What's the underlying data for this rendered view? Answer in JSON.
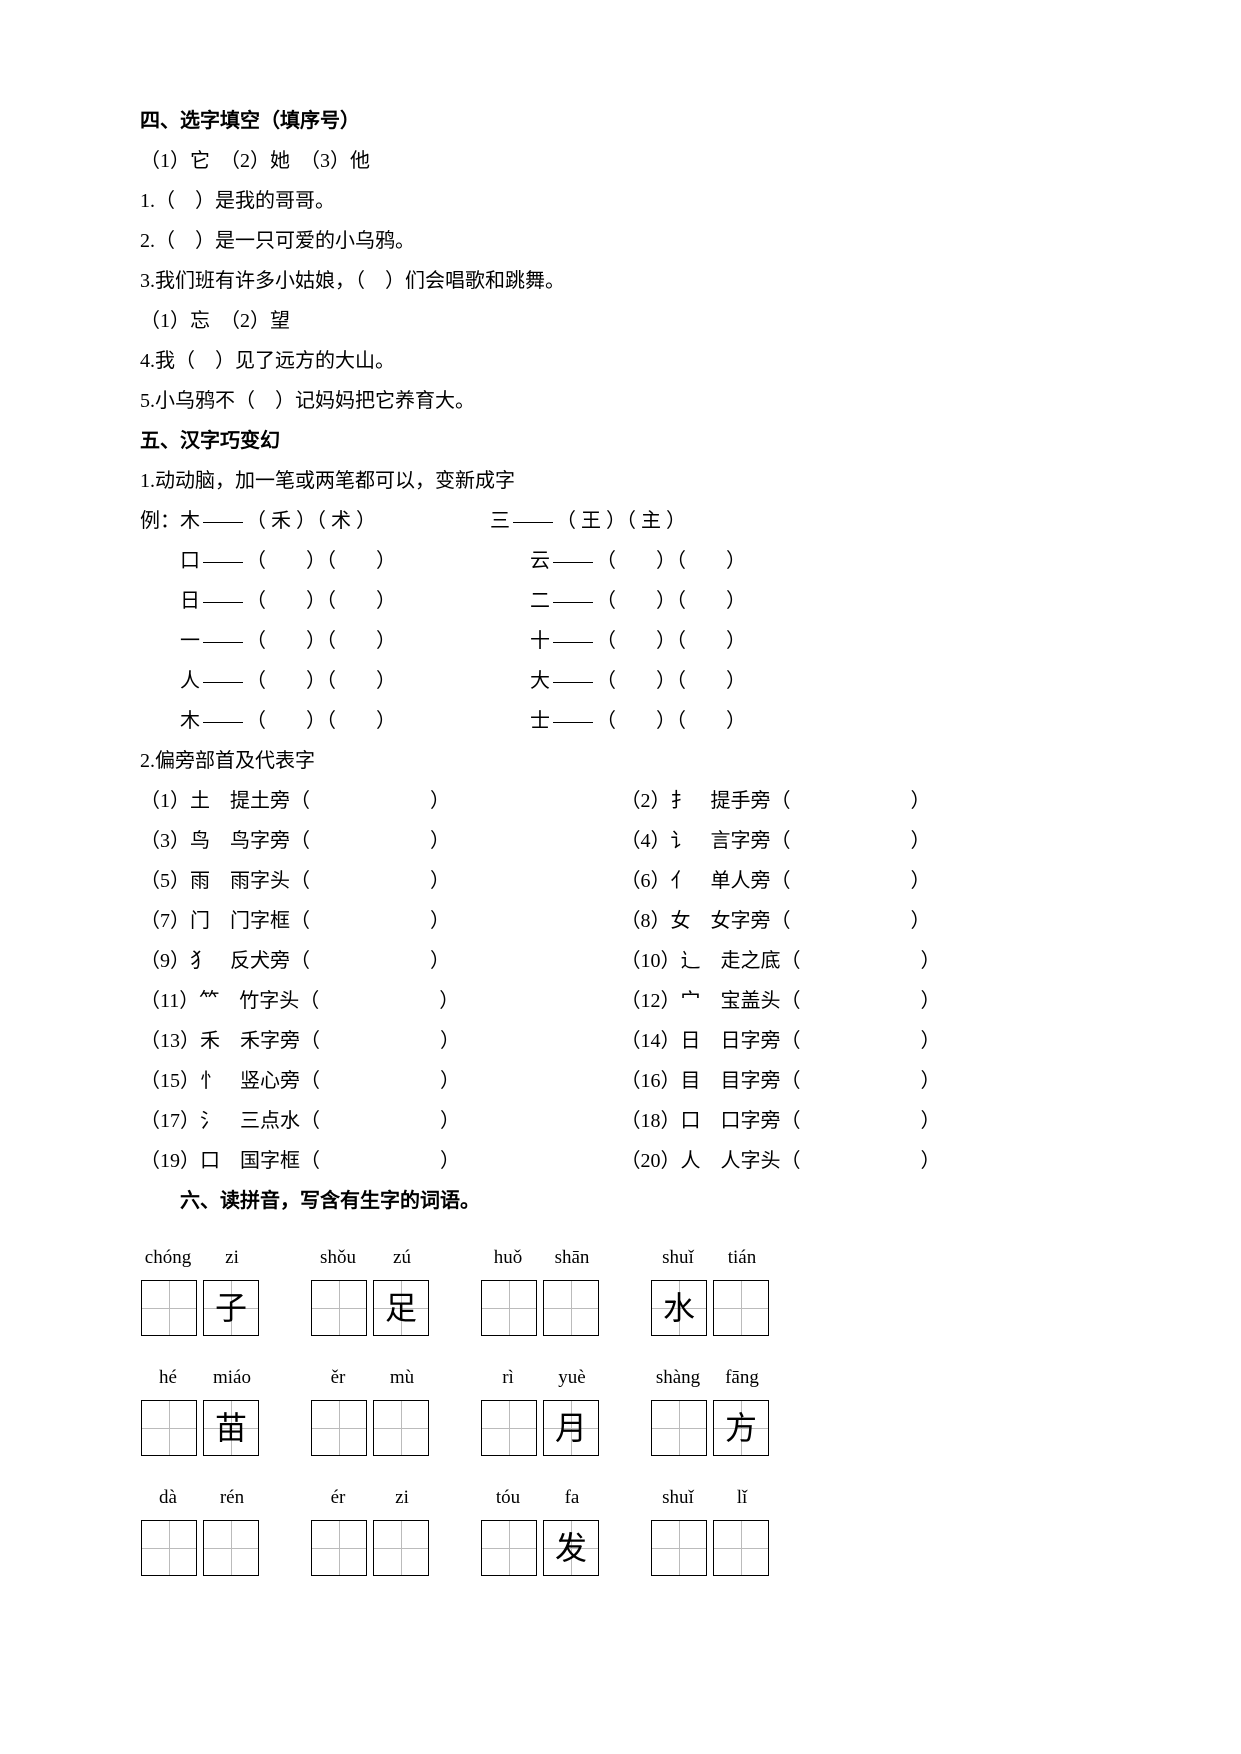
{
  "section4": {
    "title": "四、选字填空（填序号）",
    "choices1": "（1）它　（2）她　（3）他",
    "q1": "1.（　）是我的哥哥。",
    "q2": "2.（　）是一只可爱的小乌鸦。",
    "q3": "3.我们班有许多小姑娘，（　）们会唱歌和跳舞。",
    "choices2": "（1）忘　（2）望",
    "q4": "4.我（　）见了远方的大山。",
    "q5": "5.小乌鸦不（　）记妈妈把它养育大。"
  },
  "section5": {
    "title": "五、汉字巧变幻",
    "sub1": "1.动动脑，加一笔或两笔都可以，变新成字",
    "example_l": "例：木",
    "example_l_ans": "（ 禾 ）（ 术 ）",
    "example_r": "三",
    "example_r_ans": "（ 王 ）（ 主 ）",
    "rows": [
      {
        "l": "口",
        "r": "云"
      },
      {
        "l": "日",
        "r": "二"
      },
      {
        "l": "一",
        "r": "十"
      },
      {
        "l": "人",
        "r": "大"
      },
      {
        "l": "木",
        "r": "士"
      }
    ],
    "sub2": "2.偏旁部首及代表字",
    "radicals": [
      {
        "n": "（1）",
        "r": "土",
        "name": "提土旁"
      },
      {
        "n": "（2）",
        "r": "扌",
        "name": "提手旁"
      },
      {
        "n": "（3）",
        "r": "鸟",
        "name": "鸟字旁"
      },
      {
        "n": "（4）",
        "r": "讠",
        "name": "言字旁"
      },
      {
        "n": "（5）",
        "r": "雨",
        "name": "雨字头"
      },
      {
        "n": "（6）",
        "r": "亻",
        "name": "单人旁"
      },
      {
        "n": "（7）",
        "r": "门",
        "name": "门字框"
      },
      {
        "n": "（8）",
        "r": "女",
        "name": "女字旁"
      },
      {
        "n": "（9）",
        "r": "犭",
        "name": "反犬旁"
      },
      {
        "n": "（10）",
        "r": "辶",
        "name": "走之底"
      },
      {
        "n": "（11）",
        "r": "⺮",
        "name": "竹字头"
      },
      {
        "n": "（12）",
        "r": "宀",
        "name": "宝盖头"
      },
      {
        "n": "（13）",
        "r": "禾",
        "name": "禾字旁"
      },
      {
        "n": "（14）",
        "r": "日",
        "name": "日字旁"
      },
      {
        "n": "（15）",
        "r": "忄",
        "name": "竖心旁"
      },
      {
        "n": "（16）",
        "r": "目",
        "name": "目字旁"
      },
      {
        "n": "（17）",
        "r": "氵",
        "name": "三点水"
      },
      {
        "n": "（18）",
        "r": "口",
        "name": "口字旁"
      },
      {
        "n": "（19）",
        "r": "口",
        "name": "国字框"
      },
      {
        "n": "（20）",
        "r": "人",
        "name": "人字头"
      }
    ]
  },
  "section6": {
    "title": "六、读拼音，写含有生字的词语。",
    "rows": [
      [
        {
          "p1": "chóng",
          "p2": "zi",
          "c1": "",
          "c2": "子"
        },
        {
          "p1": "shǒu",
          "p2": "zú",
          "c1": "",
          "c2": "足"
        },
        {
          "p1": "huǒ",
          "p2": "shān",
          "c1": "",
          "c2": ""
        },
        {
          "p1": "shuǐ",
          "p2": "tián",
          "c1": "水",
          "c2": ""
        }
      ],
      [
        {
          "p1": "hé",
          "p2": "miáo",
          "c1": "",
          "c2": "苗"
        },
        {
          "p1": "ěr",
          "p2": "mù",
          "c1": "",
          "c2": ""
        },
        {
          "p1": "rì",
          "p2": "yuè",
          "c1": "",
          "c2": "月"
        },
        {
          "p1": "shàng",
          "p2": "fāng",
          "c1": "",
          "c2": "方"
        }
      ],
      [
        {
          "p1": "dà",
          "p2": "rén",
          "c1": "",
          "c2": ""
        },
        {
          "p1": "ér",
          "p2": "zi",
          "c1": "",
          "c2": ""
        },
        {
          "p1": "tóu",
          "p2": "fa",
          "c1": "",
          "c2": "发"
        },
        {
          "p1": "shuǐ",
          "p2": "lǐ",
          "c1": "",
          "c2": ""
        }
      ]
    ]
  }
}
